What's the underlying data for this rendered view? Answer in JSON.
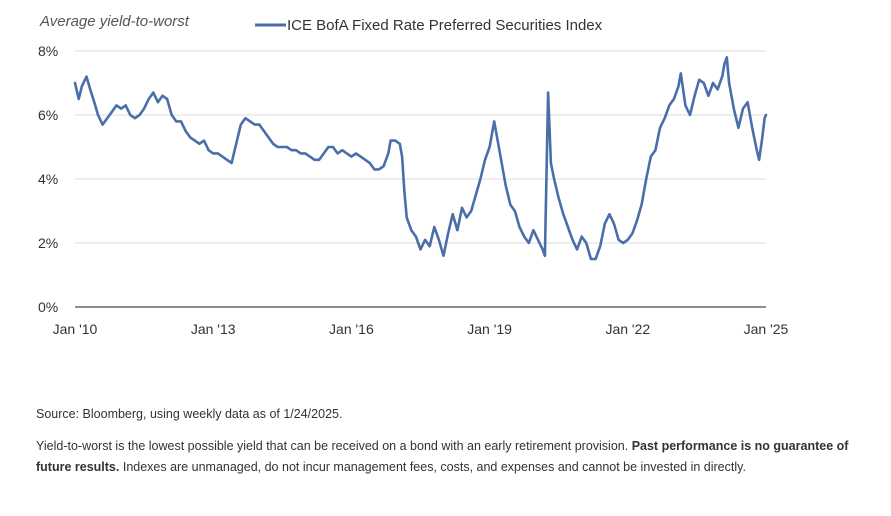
{
  "chart_data": {
    "type": "line",
    "ylabel": "Average yield-to-worst",
    "legend_position": "top",
    "y_range": [
      0,
      8
    ],
    "x_range": [
      2010,
      2025
    ],
    "y_ticks": [
      {
        "value": 0,
        "label": "0%"
      },
      {
        "value": 2,
        "label": "2%"
      },
      {
        "value": 4,
        "label": "4%"
      },
      {
        "value": 6,
        "label": "6%"
      },
      {
        "value": 8,
        "label": "8%"
      }
    ],
    "x_ticks": [
      {
        "value": 2010,
        "label": "Jan '10"
      },
      {
        "value": 2013,
        "label": "Jan '13"
      },
      {
        "value": 2016,
        "label": "Jan '16"
      },
      {
        "value": 2019,
        "label": "Jan '19"
      },
      {
        "value": 2022,
        "label": "Jan '22"
      },
      {
        "value": 2025,
        "label": "Jan '25"
      }
    ],
    "grid": true,
    "series": [
      {
        "name": "ICE BofA Fixed Rate Preferred Securities Index",
        "color": "#4a6ea9",
        "points": [
          [
            2010.0,
            7.0
          ],
          [
            2010.08,
            6.5
          ],
          [
            2010.15,
            6.9
          ],
          [
            2010.25,
            7.2
          ],
          [
            2010.33,
            6.8
          ],
          [
            2010.42,
            6.4
          ],
          [
            2010.5,
            6.0
          ],
          [
            2010.6,
            5.7
          ],
          [
            2010.7,
            5.9
          ],
          [
            2010.8,
            6.1
          ],
          [
            2010.9,
            6.3
          ],
          [
            2011.0,
            6.2
          ],
          [
            2011.1,
            6.3
          ],
          [
            2011.2,
            6.0
          ],
          [
            2011.3,
            5.9
          ],
          [
            2011.4,
            6.0
          ],
          [
            2011.5,
            6.2
          ],
          [
            2011.6,
            6.5
          ],
          [
            2011.7,
            6.7
          ],
          [
            2011.8,
            6.4
          ],
          [
            2011.9,
            6.6
          ],
          [
            2012.0,
            6.5
          ],
          [
            2012.1,
            6.0
          ],
          [
            2012.2,
            5.8
          ],
          [
            2012.3,
            5.8
          ],
          [
            2012.4,
            5.5
          ],
          [
            2012.5,
            5.3
          ],
          [
            2012.6,
            5.2
          ],
          [
            2012.7,
            5.1
          ],
          [
            2012.8,
            5.2
          ],
          [
            2012.9,
            4.9
          ],
          [
            2013.0,
            4.8
          ],
          [
            2013.1,
            4.8
          ],
          [
            2013.2,
            4.7
          ],
          [
            2013.3,
            4.6
          ],
          [
            2013.4,
            4.5
          ],
          [
            2013.5,
            5.1
          ],
          [
            2013.6,
            5.7
          ],
          [
            2013.7,
            5.9
          ],
          [
            2013.8,
            5.8
          ],
          [
            2013.9,
            5.7
          ],
          [
            2014.0,
            5.7
          ],
          [
            2014.1,
            5.5
          ],
          [
            2014.2,
            5.3
          ],
          [
            2014.3,
            5.1
          ],
          [
            2014.4,
            5.0
          ],
          [
            2014.5,
            5.0
          ],
          [
            2014.6,
            5.0
          ],
          [
            2014.7,
            4.9
          ],
          [
            2014.8,
            4.9
          ],
          [
            2014.9,
            4.8
          ],
          [
            2015.0,
            4.8
          ],
          [
            2015.1,
            4.7
          ],
          [
            2015.2,
            4.6
          ],
          [
            2015.3,
            4.6
          ],
          [
            2015.4,
            4.8
          ],
          [
            2015.5,
            5.0
          ],
          [
            2015.6,
            5.0
          ],
          [
            2015.7,
            4.8
          ],
          [
            2015.8,
            4.9
          ],
          [
            2015.9,
            4.8
          ],
          [
            2016.0,
            4.7
          ],
          [
            2016.1,
            4.8
          ],
          [
            2016.2,
            4.7
          ],
          [
            2016.3,
            4.6
          ],
          [
            2016.4,
            4.5
          ],
          [
            2016.5,
            4.3
          ],
          [
            2016.6,
            4.3
          ],
          [
            2016.7,
            4.4
          ],
          [
            2016.8,
            4.8
          ],
          [
            2016.85,
            5.2
          ],
          [
            2016.95,
            5.2
          ],
          [
            2017.05,
            5.1
          ],
          [
            2017.1,
            4.7
          ],
          [
            2017.15,
            3.6
          ],
          [
            2017.2,
            2.8
          ],
          [
            2017.3,
            2.4
          ],
          [
            2017.4,
            2.2
          ],
          [
            2017.5,
            1.8
          ],
          [
            2017.6,
            2.1
          ],
          [
            2017.7,
            1.9
          ],
          [
            2017.8,
            2.5
          ],
          [
            2017.9,
            2.1
          ],
          [
            2018.0,
            1.6
          ],
          [
            2018.1,
            2.3
          ],
          [
            2018.2,
            2.9
          ],
          [
            2018.3,
            2.4
          ],
          [
            2018.4,
            3.1
          ],
          [
            2018.5,
            2.8
          ],
          [
            2018.6,
            3.0
          ],
          [
            2018.7,
            3.5
          ],
          [
            2018.8,
            4.0
          ],
          [
            2018.9,
            4.6
          ],
          [
            2019.0,
            5.0
          ],
          [
            2019.1,
            5.8
          ],
          [
            2019.15,
            5.4
          ],
          [
            2019.25,
            4.6
          ],
          [
            2019.35,
            3.8
          ],
          [
            2019.45,
            3.2
          ],
          [
            2019.55,
            3.0
          ],
          [
            2019.65,
            2.5
          ],
          [
            2019.75,
            2.2
          ],
          [
            2019.85,
            2.0
          ],
          [
            2019.95,
            2.4
          ],
          [
            2020.05,
            2.1
          ],
          [
            2020.15,
            1.8
          ],
          [
            2020.2,
            1.6
          ],
          [
            2020.27,
            6.7
          ],
          [
            2020.33,
            4.5
          ],
          [
            2020.4,
            4.0
          ],
          [
            2020.5,
            3.4
          ],
          [
            2020.6,
            2.9
          ],
          [
            2020.7,
            2.5
          ],
          [
            2020.8,
            2.1
          ],
          [
            2020.9,
            1.8
          ],
          [
            2021.0,
            2.2
          ],
          [
            2021.1,
            2.0
          ],
          [
            2021.2,
            1.5
          ],
          [
            2021.3,
            1.5
          ],
          [
            2021.4,
            1.9
          ],
          [
            2021.5,
            2.6
          ],
          [
            2021.6,
            2.9
          ],
          [
            2021.7,
            2.6
          ],
          [
            2021.8,
            2.1
          ],
          [
            2021.9,
            2.0
          ],
          [
            2022.0,
            2.1
          ],
          [
            2022.1,
            2.3
          ],
          [
            2022.2,
            2.7
          ],
          [
            2022.3,
            3.2
          ],
          [
            2022.4,
            4.0
          ],
          [
            2022.5,
            4.7
          ],
          [
            2022.6,
            4.9
          ],
          [
            2022.7,
            5.6
          ],
          [
            2022.8,
            5.9
          ],
          [
            2022.9,
            6.3
          ],
          [
            2023.0,
            6.5
          ],
          [
            2023.1,
            6.9
          ],
          [
            2023.15,
            7.3
          ],
          [
            2023.25,
            6.3
          ],
          [
            2023.35,
            6.0
          ],
          [
            2023.45,
            6.6
          ],
          [
            2023.55,
            7.1
          ],
          [
            2023.65,
            7.0
          ],
          [
            2023.75,
            6.6
          ],
          [
            2023.85,
            7.0
          ],
          [
            2023.95,
            6.8
          ],
          [
            2024.05,
            7.2
          ],
          [
            2024.1,
            7.6
          ],
          [
            2024.15,
            7.8
          ],
          [
            2024.2,
            7.0
          ],
          [
            2024.3,
            6.2
          ],
          [
            2024.4,
            5.6
          ],
          [
            2024.5,
            6.2
          ],
          [
            2024.6,
            6.4
          ],
          [
            2024.7,
            5.6
          ],
          [
            2024.8,
            4.9
          ],
          [
            2024.85,
            4.6
          ],
          [
            2024.92,
            5.3
          ],
          [
            2024.97,
            5.9
          ],
          [
            2025.0,
            6.0
          ]
        ]
      }
    ]
  },
  "notes": {
    "source": "Source: Bloomberg, using weekly data as of 1/24/2025.",
    "definition": "Yield-to-worst is the lowest possible yield that can be received on a bond with an early retirement provision.",
    "disclaimer_bold": "Past performance is no guarantee of future results.",
    "disclaimer_rest": "Indexes are unmanaged, do not incur management fees, costs, and expenses and cannot be invested in directly."
  }
}
